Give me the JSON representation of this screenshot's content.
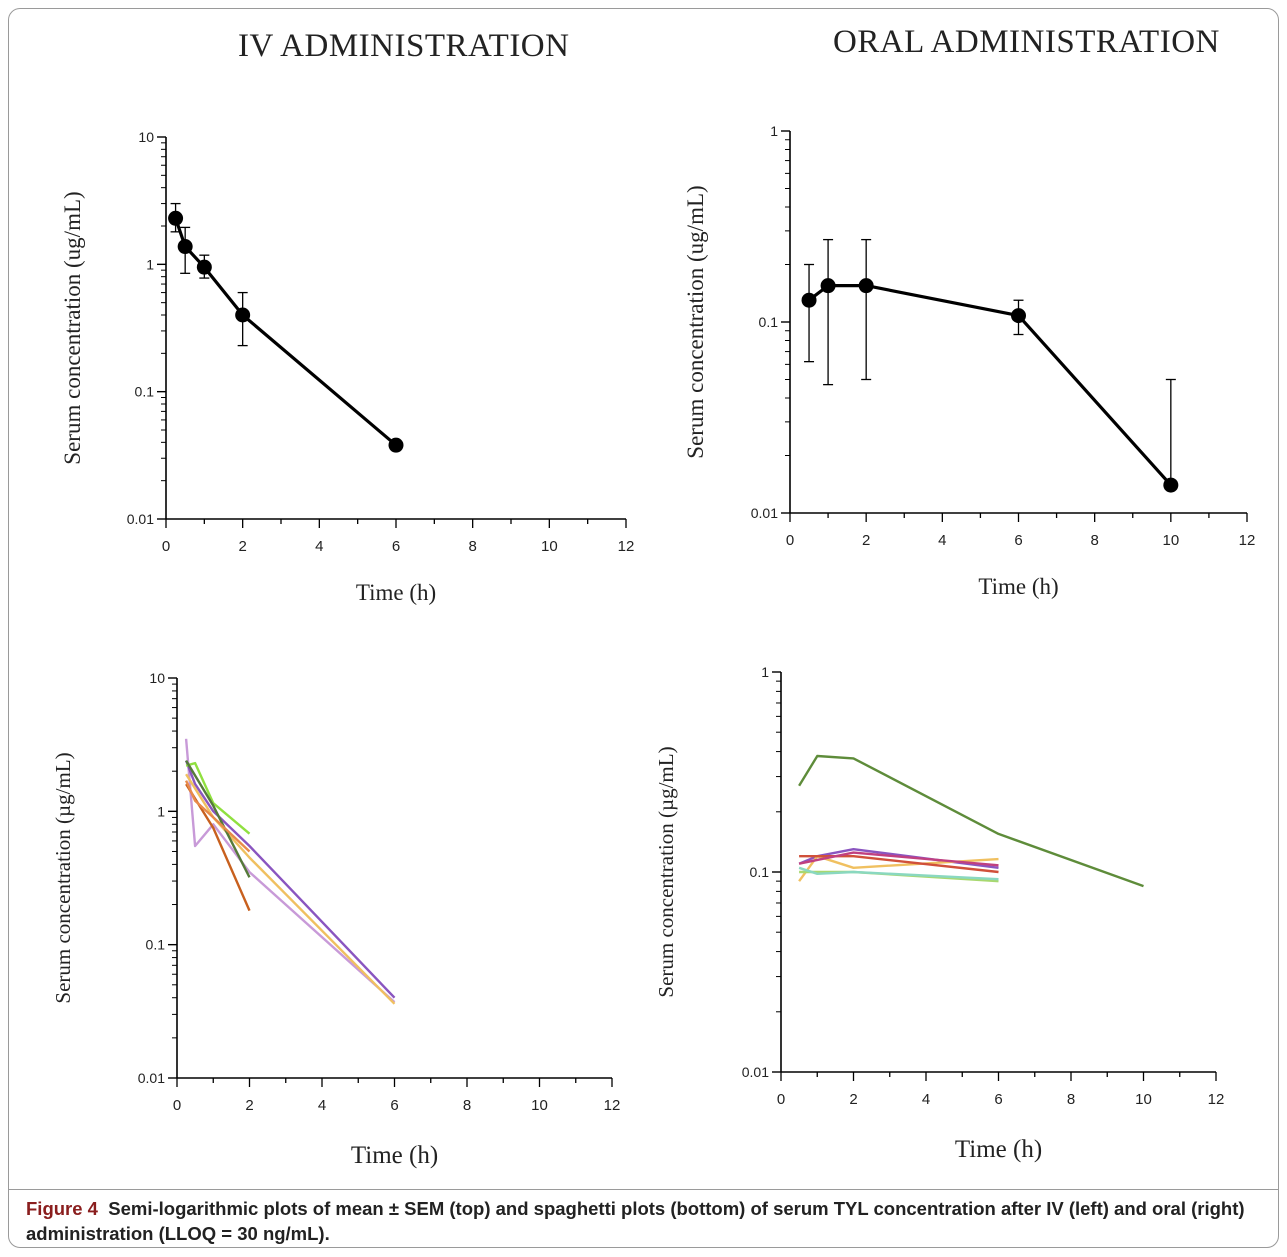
{
  "titles": {
    "left": "IV ADMINISTRATION",
    "right": "ORAL ADMINISTRATION"
  },
  "caption": {
    "label": "Figure 4",
    "text": "Semi-logarithmic plots of mean ± SEM (top) and spaghetti plots (bottom) of serum TYL concentration after IV (left) and oral (right) administration (LLOQ = 30 ng/mL)."
  },
  "chart_data": [
    {
      "id": "iv-mean",
      "type": "line",
      "xlabel": "Time (h)",
      "ylabel": "Serum concentration (ug/mL)",
      "xlim": [
        0,
        12
      ],
      "ylim": [
        0.01,
        10
      ],
      "yscale": "log",
      "xticks": [
        "0",
        "2",
        "4",
        "6",
        "8",
        "10",
        "12"
      ],
      "yticks": [
        "0.01",
        "0.1",
        "1",
        "10"
      ],
      "grid": false,
      "series": [
        {
          "x": [
            0.25,
            0.5,
            1,
            2,
            6
          ],
          "y": [
            2.3,
            1.38,
            0.95,
            0.4,
            0.038
          ],
          "err_hi": [
            3.0,
            1.95,
            1.18,
            0.6,
            0.038
          ],
          "err_lo": [
            1.8,
            0.85,
            0.78,
            0.23,
            0.038
          ],
          "color": "#000000"
        }
      ]
    },
    {
      "id": "oral-mean",
      "type": "line",
      "xlabel": "Time (h)",
      "ylabel": "Serum concentration (ug/mL)",
      "xlim": [
        0,
        12
      ],
      "ylim": [
        0.01,
        1
      ],
      "yscale": "log",
      "xticks": [
        "0",
        "2",
        "4",
        "6",
        "8",
        "10",
        "12"
      ],
      "yticks": [
        "0.01",
        "0.1",
        "1"
      ],
      "grid": false,
      "series": [
        {
          "x": [
            0.5,
            1,
            2,
            6,
            10
          ],
          "y": [
            0.13,
            0.155,
            0.155,
            0.108,
            0.014
          ],
          "err_hi": [
            0.2,
            0.27,
            0.27,
            0.13,
            0.05
          ],
          "err_lo": [
            0.062,
            0.047,
            0.05,
            0.086,
            0.014
          ],
          "color": "#000000"
        }
      ]
    },
    {
      "id": "iv-spaghetti",
      "type": "line",
      "xlabel": "Time (h)",
      "ylabel": "Serum concentration (µg/mL)",
      "xlim": [
        0,
        12
      ],
      "ylim": [
        0.01,
        10
      ],
      "yscale": "log",
      "xticks": [
        "0",
        "2",
        "4",
        "6",
        "8",
        "10",
        "12"
      ],
      "yticks": [
        "0.01",
        "0.1",
        "1",
        "10"
      ],
      "grid": false,
      "series": [
        {
          "x": [
            0.25,
            0.5,
            1,
            2,
            6
          ],
          "y": [
            3.5,
            0.55,
            0.8,
            0.35,
            0.037
          ],
          "color": "#c89ad8"
        },
        {
          "x": [
            0.25,
            0.5,
            1,
            2,
            6
          ],
          "y": [
            2.4,
            1.6,
            1.0,
            0.55,
            0.04
          ],
          "color": "#8a55c0"
        },
        {
          "x": [
            0.25,
            1,
            2,
            6
          ],
          "y": [
            1.9,
            0.9,
            0.45,
            0.036
          ],
          "color": "#f0c060"
        },
        {
          "x": [
            0.25,
            0.5,
            1,
            2
          ],
          "y": [
            2.2,
            2.3,
            1.15,
            0.68
          ],
          "color": "#90e040"
        },
        {
          "x": [
            0.25,
            1,
            2
          ],
          "y": [
            2.4,
            1.1,
            0.32
          ],
          "color": "#557a3a"
        },
        {
          "x": [
            0.25,
            1,
            2
          ],
          "y": [
            1.6,
            0.75,
            0.18
          ],
          "color": "#c8601e"
        },
        {
          "x": [
            0.25,
            0.5,
            1,
            2
          ],
          "y": [
            1.7,
            1.2,
            0.9,
            0.5
          ],
          "color": "#e88a4a"
        }
      ]
    },
    {
      "id": "oral-spaghetti",
      "type": "line",
      "xlabel": "Time (h)",
      "ylabel": "Serum concentration (µg/mL)",
      "xlim": [
        0,
        12
      ],
      "ylim": [
        0.01,
        1
      ],
      "yscale": "log",
      "xticks": [
        "0",
        "2",
        "4",
        "6",
        "8",
        "10",
        "12"
      ],
      "yticks": [
        "0.01",
        "0.1",
        "1"
      ],
      "grid": false,
      "series": [
        {
          "x": [
            0.5,
            1,
            2,
            6,
            10
          ],
          "y": [
            0.27,
            0.38,
            0.37,
            0.155,
            0.085
          ],
          "color": "#5e8c3a"
        },
        {
          "x": [
            0.5,
            1,
            2,
            6
          ],
          "y": [
            0.11,
            0.12,
            0.13,
            0.105
          ],
          "color": "#8a55c0"
        },
        {
          "x": [
            0.5,
            1,
            2,
            6
          ],
          "y": [
            0.09,
            0.12,
            0.105,
            0.116
          ],
          "color": "#f0c060"
        },
        {
          "x": [
            0.5,
            1,
            2,
            6
          ],
          "y": [
            0.12,
            0.12,
            0.12,
            0.1
          ],
          "color": "#d0503a"
        },
        {
          "x": [
            0.5,
            1,
            2,
            6
          ],
          "y": [
            0.11,
            0.115,
            0.125,
            0.108
          ],
          "color": "#c04080"
        },
        {
          "x": [
            0.5,
            1,
            2,
            6
          ],
          "y": [
            0.1,
            0.1,
            0.1,
            0.09
          ],
          "color": "#a8d870"
        },
        {
          "x": [
            0.5,
            1,
            2,
            6
          ],
          "y": [
            0.105,
            0.098,
            0.1,
            0.092
          ],
          "color": "#8ad8c0"
        }
      ]
    }
  ]
}
